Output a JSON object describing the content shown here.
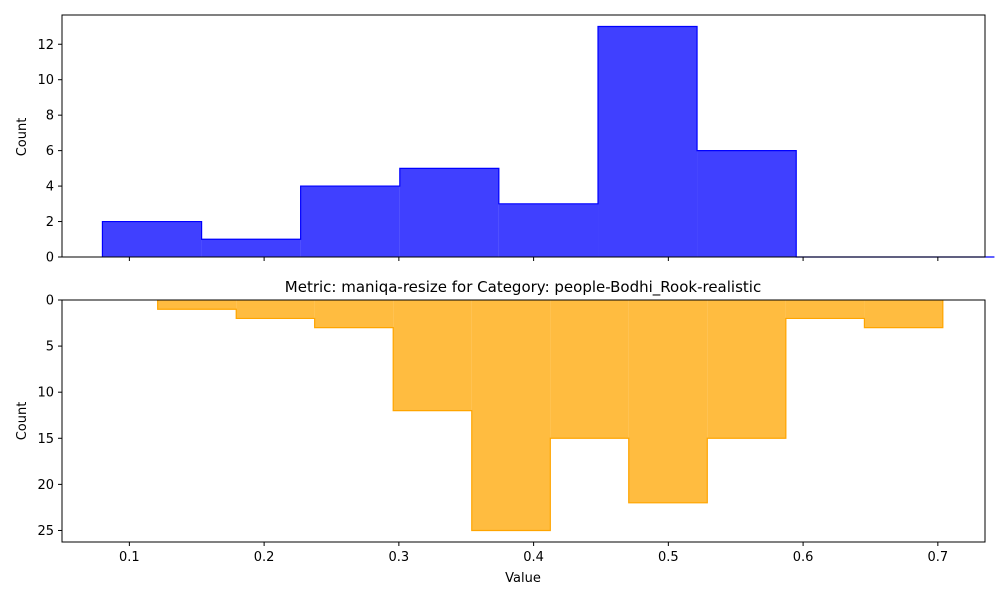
{
  "chart_data": [
    {
      "type": "histogram",
      "orientation": "normal",
      "ylabel": "Count",
      "xlim": [
        0.05,
        0.735
      ],
      "ylim": [
        0,
        13.65
      ],
      "yticks": [
        0,
        2,
        4,
        6,
        8,
        10,
        12
      ],
      "color": "#0000ff",
      "bin_edges": [
        0.08,
        0.1536,
        0.2271,
        0.3007,
        0.3742,
        0.4478,
        0.5213,
        0.5949,
        0.6684,
        0.742
      ],
      "counts": [
        2,
        1,
        4,
        5,
        3,
        13,
        6,
        0,
        0
      ]
    },
    {
      "type": "histogram",
      "orientation": "inverted",
      "title": "Metric: maniqa-resize for Category: people-Bodhi_Rook-realistic",
      "xlabel": "Value",
      "ylabel": "Count",
      "xlim": [
        0.05,
        0.735
      ],
      "ylim": [
        0,
        26.25
      ],
      "yticks": [
        0,
        5,
        10,
        15,
        20,
        25
      ],
      "color": "#ffa500",
      "bin_edges": [
        0.121,
        0.1793,
        0.2375,
        0.2958,
        0.3541,
        0.4124,
        0.4706,
        0.5289,
        0.5872,
        0.6455,
        0.7037
      ],
      "counts": [
        1,
        2,
        3,
        12,
        25,
        15,
        22,
        15,
        2,
        3
      ]
    }
  ],
  "xticks": [
    "0.1",
    "0.2",
    "0.3",
    "0.4",
    "0.5",
    "0.6",
    "0.7"
  ],
  "xtick_values": [
    0.1,
    0.2,
    0.3,
    0.4,
    0.5,
    0.6,
    0.7
  ]
}
